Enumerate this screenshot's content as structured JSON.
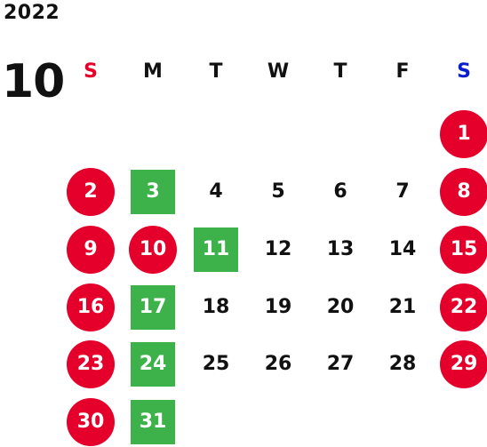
{
  "calendar": {
    "year": "2022",
    "month": "10",
    "weekdays": [
      {
        "label": "S",
        "color": "#e4002b"
      },
      {
        "label": "M",
        "color": "#111111"
      },
      {
        "label": "T",
        "color": "#111111"
      },
      {
        "label": "W",
        "color": "#111111"
      },
      {
        "label": "T",
        "color": "#111111"
      },
      {
        "label": "F",
        "color": "#111111"
      },
      {
        "label": "S",
        "color": "#0a1ecc"
      }
    ],
    "first_weekday_index": 6,
    "days": [
      {
        "label": "1",
        "style": "holiday"
      },
      {
        "label": "2",
        "style": "holiday"
      },
      {
        "label": "3",
        "style": "marked"
      },
      {
        "label": "4",
        "style": "plain"
      },
      {
        "label": "5",
        "style": "plain"
      },
      {
        "label": "6",
        "style": "plain"
      },
      {
        "label": "7",
        "style": "plain"
      },
      {
        "label": "8",
        "style": "holiday"
      },
      {
        "label": "9",
        "style": "holiday"
      },
      {
        "label": "10",
        "style": "holiday"
      },
      {
        "label": "11",
        "style": "marked"
      },
      {
        "label": "12",
        "style": "plain"
      },
      {
        "label": "13",
        "style": "plain"
      },
      {
        "label": "14",
        "style": "plain"
      },
      {
        "label": "15",
        "style": "holiday"
      },
      {
        "label": "16",
        "style": "holiday"
      },
      {
        "label": "17",
        "style": "marked"
      },
      {
        "label": "18",
        "style": "plain"
      },
      {
        "label": "19",
        "style": "plain"
      },
      {
        "label": "20",
        "style": "plain"
      },
      {
        "label": "21",
        "style": "plain"
      },
      {
        "label": "22",
        "style": "holiday"
      },
      {
        "label": "23",
        "style": "holiday"
      },
      {
        "label": "24",
        "style": "marked"
      },
      {
        "label": "25",
        "style": "plain"
      },
      {
        "label": "26",
        "style": "plain"
      },
      {
        "label": "27",
        "style": "plain"
      },
      {
        "label": "28",
        "style": "plain"
      },
      {
        "label": "29",
        "style": "holiday"
      },
      {
        "label": "30",
        "style": "holiday"
      },
      {
        "label": "31",
        "style": "marked"
      }
    ],
    "colors": {
      "holiday": "#e4002b",
      "marked": "#3db24b",
      "saturday_header": "#0a1ecc",
      "sunday_header": "#e4002b"
    }
  }
}
